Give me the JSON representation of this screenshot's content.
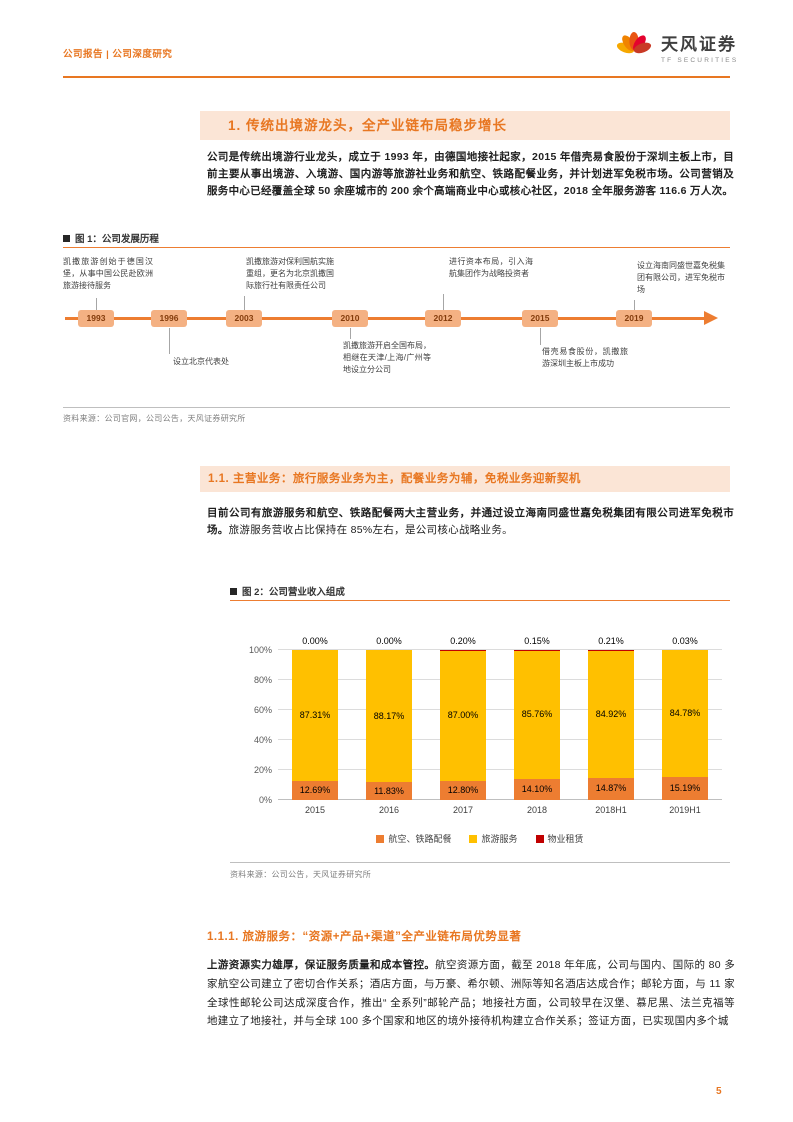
{
  "page": {
    "number": "5"
  },
  "header": {
    "left": "公司报告 | 公司深度研究",
    "brand": {
      "name": "天风证券",
      "subtitle": "TF SECURITIES"
    }
  },
  "section1": {
    "title": "1.  传统出境游龙头，全产业链布局稳步增长",
    "paragraph": "公司是传统出境游行业龙头，成立于 1993 年，由德国地接社起家，2015 年借壳易食股份于深圳主板上市，目前主要从事出境游、入境游、国内游等旅游社业务和航空、铁路配餐业务，并计划进军免税市场。公司营销及服务中心已经覆盖全球 50 余座城市的 200 余个高端商业中心或核心社区，2018 全年服务游客 116.6 万人次。"
  },
  "figure1": {
    "label": "图 1：公司发展历程",
    "source": "资料来源：公司官网，公司公告，天风证券研究所",
    "timeline": {
      "events": [
        {
          "year": "1993",
          "side": "above",
          "text": "凯撒旅游创始于德国汉堡，从事中国公民赴欧洲旅游接待服务"
        },
        {
          "year": "1996",
          "side": "below",
          "text": "设立北京代表处"
        },
        {
          "year": "2003",
          "side": "above",
          "text": "凯撒旅游对保利国航实施重组，更名为北京凯撒国际旅行社有限责任公司"
        },
        {
          "year": "2010",
          "side": "below",
          "text": "凯撒旅游开启全国布局，相继在天津/上海/广州等地设立分公司"
        },
        {
          "year": "2012",
          "side": "above",
          "text": "进行资本布局，引入海航集团作为战略投资者"
        },
        {
          "year": "2015",
          "side": "below",
          "text": "借壳易食股份，凯撒旅游深圳主板上市成功"
        },
        {
          "year": "2019",
          "side": "above",
          "text": "设立海南同盛世嘉免税集团有限公司，进军免税市场"
        }
      ]
    }
  },
  "section11": {
    "title": "1.1. 主营业务：旅行服务业务为主，配餐业务为辅，免税业务迎新契机",
    "paragraph_bold": "目前公司有旅游服务和航空、铁路配餐两大主营业务，并通过设立海南同盛世嘉免税集团有限公司进军免税市场。",
    "paragraph_regular": "旅游服务营收占比保持在 85%左右，是公司核心战略业务。"
  },
  "figure2": {
    "label": "图 2：公司营业收入组成",
    "source": "资料来源：公司公告，天风证券研究所"
  },
  "chart_data": {
    "type": "bar",
    "stacked": true,
    "title": "公司营业收入组成",
    "categories": [
      "2015",
      "2016",
      "2017",
      "2018",
      "2018H1",
      "2019H1"
    ],
    "series": [
      {
        "name": "航空、铁路配餐",
        "color": "#ED7D31",
        "values": [
          12.69,
          11.83,
          12.8,
          14.1,
          14.87,
          15.19
        ],
        "labels": [
          "12.69%",
          "11.83%",
          "12.80%",
          "14.10%",
          "14.87%",
          "15.19%"
        ]
      },
      {
        "name": "旅游服务",
        "color": "#FFC000",
        "values": [
          87.31,
          88.17,
          87.0,
          85.76,
          84.92,
          84.78
        ],
        "labels": [
          "87.31%",
          "88.17%",
          "87.00%",
          "85.76%",
          "84.92%",
          "84.78%"
        ]
      },
      {
        "name": "物业租赁",
        "color": "#C00000",
        "values": [
          0.0,
          0.0,
          0.2,
          0.15,
          0.21,
          0.03
        ],
        "labels": [
          "0.00%",
          "0.00%",
          "0.20%",
          "0.15%",
          "0.21%",
          "0.03%"
        ]
      }
    ],
    "ylim": [
      0,
      100
    ],
    "yticks": [
      "0%",
      "20%",
      "40%",
      "60%",
      "80%",
      "100%"
    ],
    "grid": true,
    "legend_position": "bottom"
  },
  "section111": {
    "title": "1.1.1.  旅游服务：“资源+产品+渠道”全产业链布局优势显著",
    "paragraph_bold": "上游资源实力雄厚，保证服务质量和成本管控。",
    "paragraph_regular": "航空资源方面，截至 2018 年年底，公司与国内、国际的 80 多家航空公司建立了密切合作关系；酒店方面，与万豪、希尔顿、洲际等知名酒店达成合作；邮轮方面，与 11 家全球性邮轮公司达成深度合作，推出“ 全系列”邮轮产品；地接社方面，公司较早在汉堡、慕尼黑、法兰克福等地建立了地接社，并与全球 100 多个国家和地区的境外接待机构建立合作关系；签证方面，已实现国内多个城"
  }
}
